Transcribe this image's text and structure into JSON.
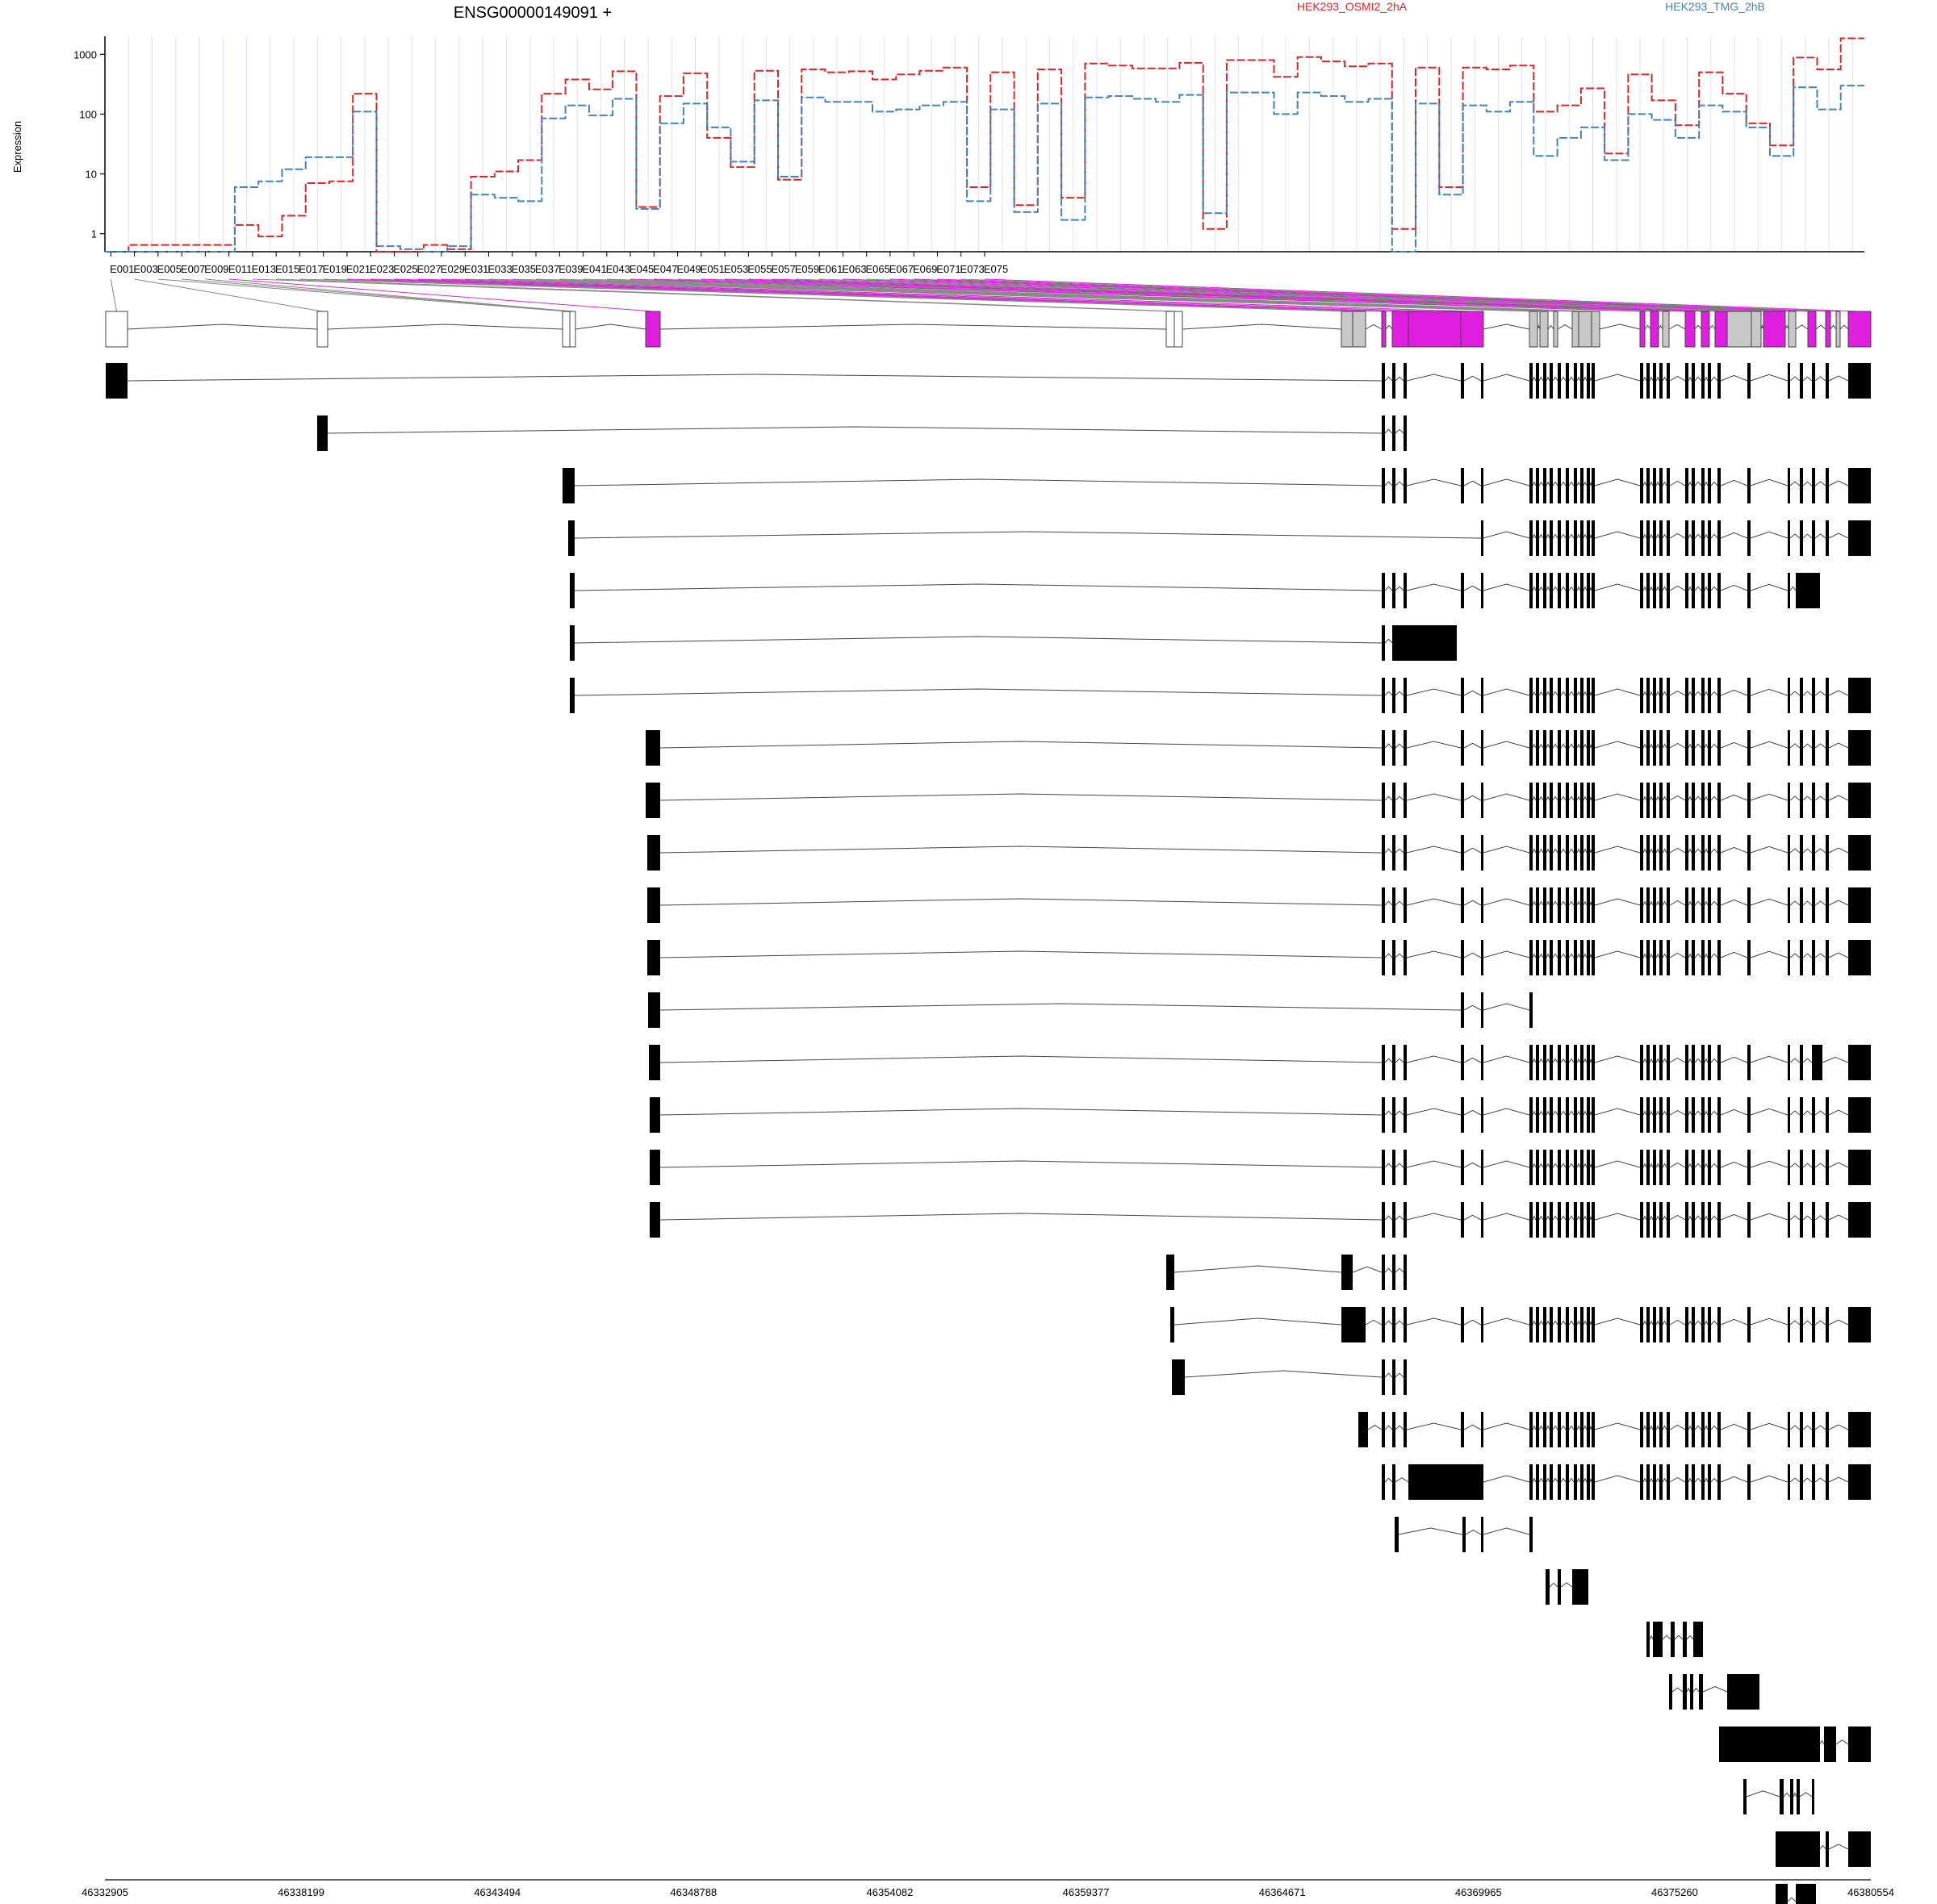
{
  "chart_data": {
    "type": "line",
    "title": "ENSG00000149091 +",
    "ylabel": "Expression",
    "xlabel": "",
    "y_scale": "log",
    "ylim": [
      0.5,
      2000
    ],
    "y_ticks": [
      "1",
      "10",
      "100",
      "1000"
    ],
    "grid": true,
    "legend_placement": "top-right",
    "exon_labels": [
      "E001",
      "E003",
      "E005",
      "E007",
      "E009",
      "E011",
      "E013",
      "E015",
      "E017",
      "E019",
      "E021",
      "E023",
      "E025",
      "E027",
      "E029",
      "E031",
      "E033",
      "E035",
      "E037",
      "E039",
      "E041",
      "E043",
      "E045",
      "E047",
      "E049",
      "E051",
      "E053",
      "E055",
      "E057",
      "E059",
      "E061",
      "E063",
      "E065",
      "E067",
      "E069",
      "E071",
      "E073",
      "E075"
    ],
    "series": [
      {
        "name": "HEK293_OSMI2_2hA",
        "color": "#d62728",
        "values": [
          0.5,
          0.5,
          0.65,
          0.65,
          0.65,
          0.65,
          0.65,
          0.65,
          0.65,
          0.65,
          0.65,
          1.4,
          1.4,
          0.9,
          0.9,
          2.0,
          2.0,
          7,
          7,
          7.5,
          7.5,
          220,
          220,
          0.5,
          0.5,
          0.5,
          0.5,
          0.65,
          0.65,
          0.55,
          0.55,
          9,
          9,
          11,
          11,
          17,
          17,
          220,
          220,
          380,
          380,
          260,
          260,
          520,
          520,
          2.8,
          2.8,
          200,
          200,
          480,
          480,
          40,
          40,
          13,
          13,
          530,
          530,
          8,
          8,
          560,
          560,
          500,
          500,
          520,
          520,
          380,
          380,
          460,
          460,
          530,
          530,
          600,
          600,
          6,
          6,
          500,
          500,
          3,
          3,
          560,
          560,
          4,
          4,
          700,
          700,
          650,
          650,
          580,
          580,
          580,
          580,
          720,
          720,
          1.2,
          1.2,
          800,
          800,
          800,
          800,
          420,
          420,
          900,
          900,
          760,
          760,
          630,
          630,
          700,
          700,
          1.2,
          1.2,
          600,
          600,
          6,
          6,
          600,
          600,
          560,
          560,
          650,
          650,
          110,
          110,
          140,
          140,
          270,
          270,
          22,
          22,
          460,
          460,
          170,
          170,
          65,
          65,
          500,
          500,
          220,
          220,
          70,
          70,
          30,
          30,
          880,
          880,
          560,
          560,
          1850,
          1850
        ]
      },
      {
        "name": "HEK293_TMG_2hB",
        "color": "#4682b4",
        "values": [
          0.5,
          0.5,
          0.5,
          0.5,
          0.5,
          0.5,
          0.5,
          0.5,
          0.5,
          0.5,
          0.5,
          6,
          6,
          7.5,
          7.5,
          12,
          12,
          19,
          19,
          19,
          19,
          110,
          110,
          0.62,
          0.62,
          0.55,
          0.55,
          0.5,
          0.5,
          0.62,
          0.62,
          4.5,
          4.5,
          4,
          4,
          3.5,
          3.5,
          85,
          85,
          140,
          140,
          95,
          95,
          180,
          180,
          2.6,
          2.6,
          70,
          70,
          150,
          150,
          60,
          60,
          16,
          16,
          170,
          170,
          9,
          9,
          190,
          190,
          160,
          160,
          160,
          160,
          110,
          110,
          120,
          120,
          140,
          140,
          160,
          160,
          3.5,
          3.5,
          120,
          120,
          2.3,
          2.3,
          150,
          150,
          1.7,
          1.7,
          190,
          190,
          200,
          200,
          180,
          180,
          160,
          160,
          210,
          210,
          2.2,
          2.2,
          230,
          230,
          230,
          230,
          100,
          100,
          230,
          230,
          200,
          200,
          160,
          160,
          180,
          180,
          0.5,
          0.5,
          150,
          150,
          4.5,
          4.5,
          140,
          140,
          110,
          110,
          160,
          160,
          20,
          20,
          40,
          40,
          60,
          60,
          17,
          17,
          100,
          100,
          80,
          80,
          40,
          40,
          140,
          140,
          110,
          110,
          60,
          60,
          20,
          20,
          280,
          280,
          120,
          120,
          300,
          300
        ]
      }
    ],
    "genomic_axis": {
      "min": 46332905,
      "max": 46380554,
      "tick_labels": [
        "46332905",
        "46338199",
        "46343494",
        "46348788",
        "46354082",
        "46359377",
        "46364671",
        "46369965",
        "46375260",
        "46380554"
      ]
    }
  }
}
